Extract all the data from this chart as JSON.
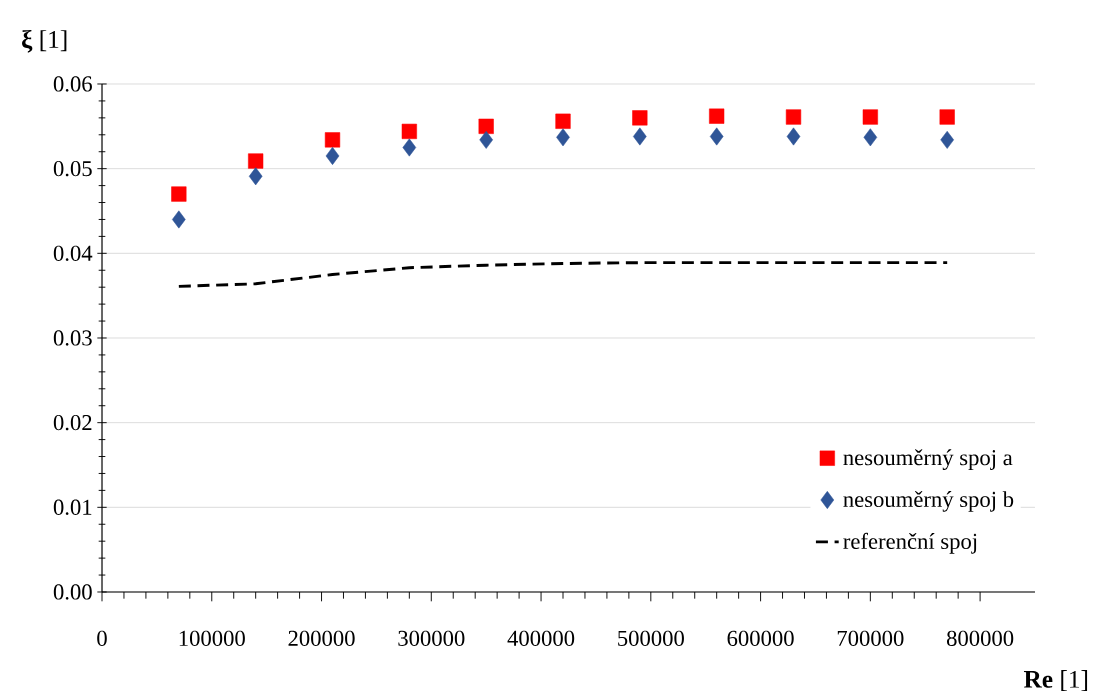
{
  "chart_data": {
    "type": "scatter",
    "xlabel": "**Re** [1]",
    "ylabel": "**ξ** [1]",
    "x": [
      70000,
      140000,
      210000,
      280000,
      350000,
      420000,
      490000,
      560000,
      630000,
      700000,
      770000
    ],
    "series": [
      {
        "name": "nesouměrný spoj a",
        "color": "#ff0000",
        "marker": "square",
        "values": [
          0.047,
          0.0509,
          0.0534,
          0.0544,
          0.055,
          0.0556,
          0.056,
          0.0562,
          0.0561,
          0.0561,
          0.0561
        ]
      },
      {
        "name": "nesouměrný spoj b",
        "color": "#2f5597",
        "marker": "diamond",
        "values": [
          0.044,
          0.0491,
          0.0515,
          0.0525,
          0.0534,
          0.0537,
          0.0538,
          0.0538,
          0.0538,
          0.0537,
          0.0534
        ]
      },
      {
        "name": "referenční spoj",
        "type": "line",
        "color": "#000000",
        "line_style": "dashed",
        "marker": "none",
        "values": [
          0.0361,
          0.0364,
          0.0375,
          0.0383,
          0.0386,
          0.0388,
          0.0389,
          0.0389,
          0.0389,
          0.0389,
          0.0389
        ]
      }
    ],
    "xlim": [
      0,
      850000
    ],
    "ylim": [
      0,
      0.06
    ],
    "xticks": [
      0,
      100000,
      200000,
      300000,
      400000,
      500000,
      600000,
      700000,
      800000
    ],
    "yticks": [
      {
        "value": 0,
        "label": "0.00"
      },
      {
        "value": 0.01,
        "label": "0.01"
      },
      {
        "value": 0.02,
        "label": "0.02"
      },
      {
        "value": 0.03,
        "label": "0.03"
      },
      {
        "value": 0.04,
        "label": "0.04"
      },
      {
        "value": 0.05,
        "label": "0.05"
      },
      {
        "value": 0.06,
        "label": "0.06"
      }
    ],
    "grid": "y",
    "legend": "bottom right"
  }
}
